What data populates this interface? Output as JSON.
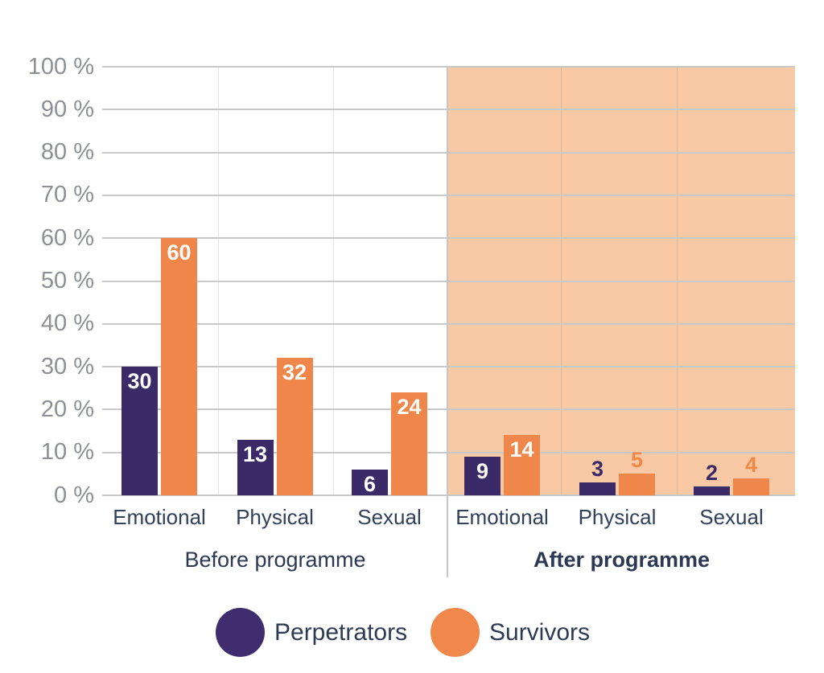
{
  "chart_data": {
    "type": "bar",
    "title": "",
    "xlabel": "",
    "ylabel": "",
    "ylim": [
      0,
      100
    ],
    "grid": "horizontal",
    "y_ticks": [
      "100 %",
      "90 %",
      "80 %",
      "70 %",
      "60 %",
      "50 %",
      "40 %",
      "30 %",
      "20 %",
      "10 %",
      "0 %"
    ],
    "categories": [
      "Emotional",
      "Physical",
      "Sexual",
      "Emotional",
      "Physical",
      "Sexual"
    ],
    "groups": [
      {
        "label": "Before programme",
        "emphasis": "normal",
        "background": "#ffffff",
        "categories": [
          "Emotional",
          "Physical",
          "Sexual"
        ]
      },
      {
        "label": "After programme",
        "emphasis": "bold",
        "background": "#f9c8a4",
        "categories": [
          "Emotional",
          "Physical",
          "Sexual"
        ]
      }
    ],
    "series": [
      {
        "name": "Perpetrators",
        "color": "#3b2a68",
        "values": [
          30,
          13,
          6,
          9,
          3,
          2
        ]
      },
      {
        "name": "Survivors",
        "color": "#f0874a",
        "values": [
          60,
          32,
          24,
          14,
          5,
          4
        ]
      }
    ],
    "value_labels": {
      "inside_min_value": 6,
      "inside_color": "#ffffff",
      "outside_colors": [
        "#3b2a68",
        "#ef8947"
      ]
    },
    "legend_position": "bottom"
  },
  "legend": {
    "items": [
      {
        "label": "Perpetrators",
        "swatch": "circle",
        "color": "#402d70"
      },
      {
        "label": "Survivors",
        "swatch": "circle",
        "color": "#f0884b"
      }
    ]
  },
  "colors": {
    "gridline": "#c9c9c9",
    "axis_tick_text": "#8d9095",
    "category_text": "#31405b",
    "group_text": "#2c3954",
    "after_region_shade": "#f9c8a4"
  }
}
